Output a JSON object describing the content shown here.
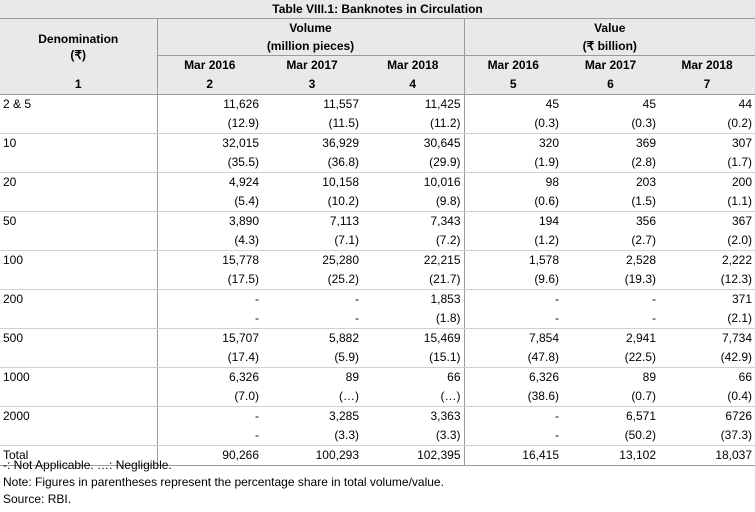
{
  "title": "Table VIII.1: Banknotes in Circulation",
  "headers": {
    "denomination": "Denomination",
    "denomination_unit": "(₹)",
    "volume": "Volume",
    "volume_unit": "(million pieces)",
    "value": "Value",
    "value_unit": "(₹ billion)",
    "years": [
      "Mar 2016",
      "Mar 2017",
      "Mar 2018",
      "Mar 2016",
      "Mar 2017",
      "Mar 2018"
    ],
    "col_numbers": [
      "1",
      "2",
      "3",
      "4",
      "5",
      "6",
      "7"
    ]
  },
  "rows": [
    {
      "denomination": "2 & 5",
      "values": [
        "11,626",
        "11,557",
        "11,425",
        "45",
        "45",
        "44"
      ],
      "shares": [
        "(12.9)",
        "(11.5)",
        "(11.2)",
        "(0.3)",
        "(0.3)",
        "(0.2)"
      ]
    },
    {
      "denomination": "10",
      "values": [
        "32,015",
        "36,929",
        "30,645",
        "320",
        "369",
        "307"
      ],
      "shares": [
        "(35.5)",
        "(36.8)",
        "(29.9)",
        "(1.9)",
        "(2.8)",
        "(1.7)"
      ]
    },
    {
      "denomination": "20",
      "values": [
        "4,924",
        "10,158",
        "10,016",
        "98",
        "203",
        "200"
      ],
      "shares": [
        "(5.4)",
        "(10.2)",
        "(9.8)",
        "(0.6)",
        "(1.5)",
        "(1.1)"
      ]
    },
    {
      "denomination": "50",
      "values": [
        "3,890",
        "7,113",
        "7,343",
        "194",
        "356",
        "367"
      ],
      "shares": [
        "(4.3)",
        "(7.1)",
        "(7.2)",
        "(1.2)",
        "(2.7)",
        "(2.0)"
      ]
    },
    {
      "denomination": "100",
      "values": [
        "15,778",
        "25,280",
        "22,215",
        "1,578",
        "2,528",
        "2,222"
      ],
      "shares": [
        "(17.5)",
        "(25.2)",
        "(21.7)",
        "(9.6)",
        "(19.3)",
        "(12.3)"
      ]
    },
    {
      "denomination": "200",
      "values": [
        "-",
        "-",
        "1,853",
        "-",
        "-",
        "371"
      ],
      "shares": [
        "-",
        "-",
        "(1.8)",
        "-",
        "-",
        "(2.1)"
      ]
    },
    {
      "denomination": "500",
      "values": [
        "15,707",
        "5,882",
        "15,469",
        "7,854",
        "2,941",
        "7,734"
      ],
      "shares": [
        "(17.4)",
        "(5.9)",
        "(15.1)",
        "(47.8)",
        "(22.5)",
        "(42.9)"
      ]
    },
    {
      "denomination": "1000",
      "values": [
        "6,326",
        "89",
        "66",
        "6,326",
        "89",
        "66"
      ],
      "shares": [
        "(7.0)",
        "(…)",
        "(…)",
        "(38.6)",
        "(0.7)",
        "(0.4)"
      ]
    },
    {
      "denomination": "2000",
      "values": [
        "-",
        "3,285",
        "3,363",
        "-",
        "6,571",
        "6726"
      ],
      "shares": [
        "-",
        "(3.3)",
        "(3.3)",
        "-",
        "(50.2)",
        "(37.3)"
      ]
    }
  ],
  "total": {
    "label": "Total",
    "values": [
      "90,266",
      "100,293",
      "102,395",
      "16,415",
      "13,102",
      "18,037"
    ]
  },
  "notes": [
    "-: Not Applicable. …: Negligible.",
    "Note: Figures in parentheses represent the percentage share in total volume/value.",
    "Source: RBI."
  ]
}
